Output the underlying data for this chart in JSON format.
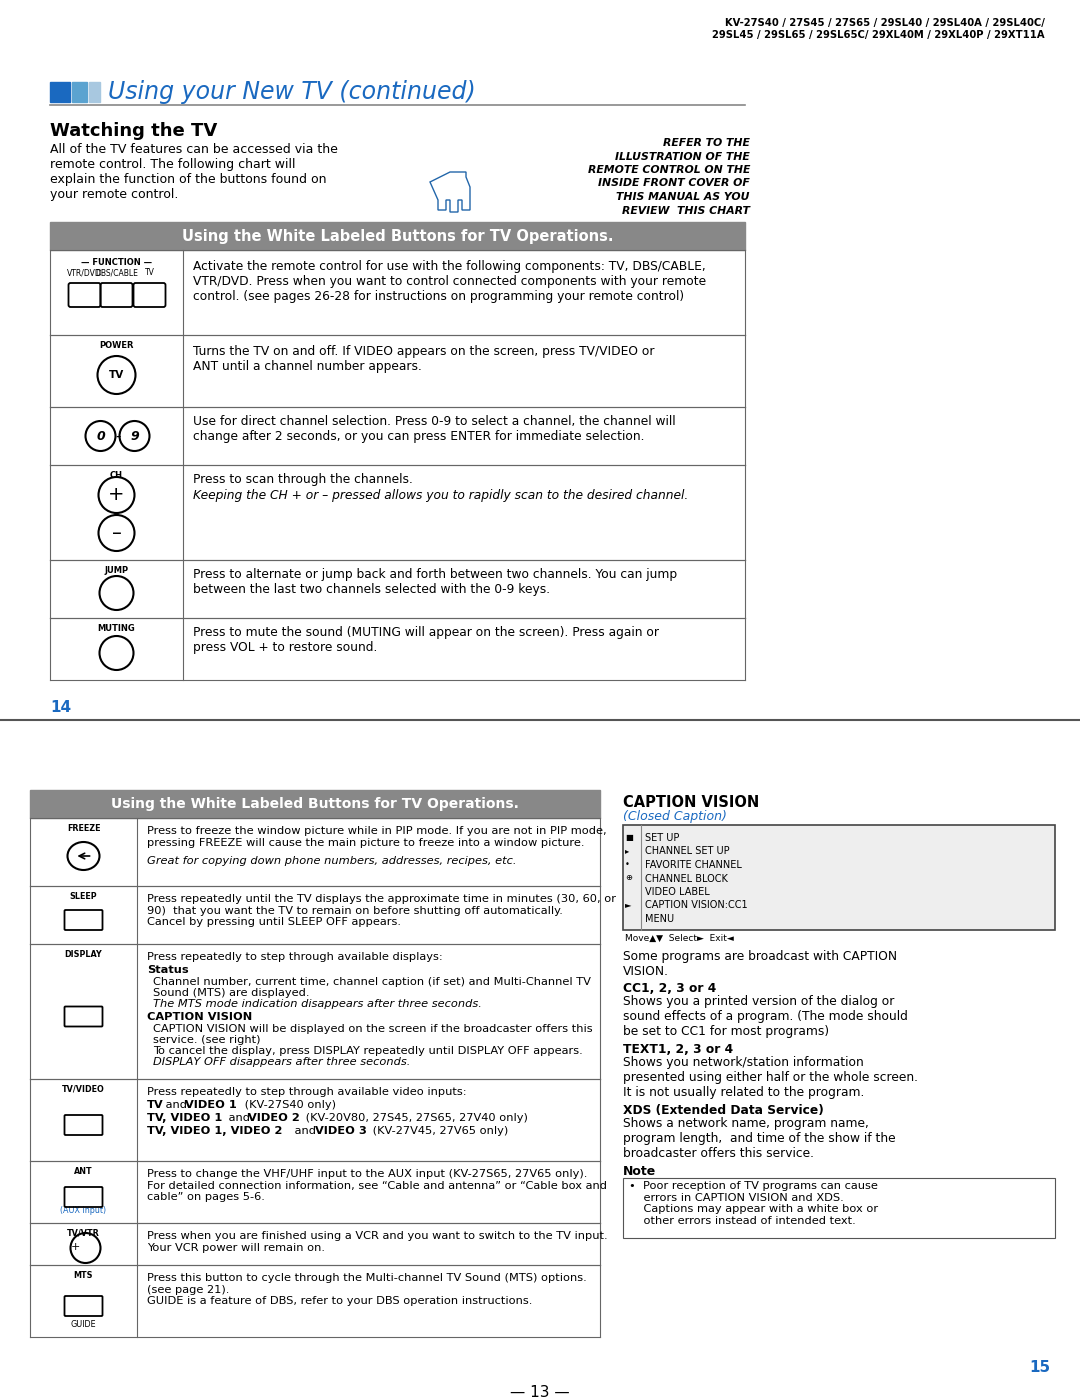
{
  "bg_color": "#ffffff",
  "top_model_line1": "KV-27S40 / 27S45 / 27S65 / 29SL40 / 29SL40A / 29SL40C/",
  "top_model_line2": "29SL45 / 29SL65 / 29SL65C/ 29XL40M / 29XL40P / 29XT11A",
  "section_title": "Using your New TV (continued)",
  "watching_tv_title": "Watching the TV",
  "watching_tv_body": "All of the TV features can be accessed via the\nremote control. The following chart will\nexplain the function of the buttons found on\nyour remote control.",
  "refer_text_lines": [
    "REFER TO THE",
    "ILLUSTRATION OF THE",
    "REMOTE CONTROL ON THE",
    "INSIDE FRONT COVER OF",
    "THIS MANUAL AS YOU",
    "REVIEW  THIS CHART"
  ],
  "table1_title": "Using the White Labeled Buttons for TV Operations.",
  "table2_title": "Using the White Labeled Buttons for TV Operations.",
  "caption_vision_title": "CAPTION VISION",
  "caption_vision_subtitle": "(Closed Caption)",
  "caption_vision_menu": [
    "SET UP",
    "CHANNEL SET UP",
    "FAVORITE CHANNEL",
    "CHANNEL BLOCK",
    "VIDEO LABEL",
    "CAPTION VISION:CC1",
    "MENU"
  ],
  "page_num_top": "14",
  "page_num_bottom": "15",
  "bottom_center_text": "— 13 —",
  "blue_color": "#1a69c0",
  "header_bg": "#888888",
  "border_color": "#666666"
}
